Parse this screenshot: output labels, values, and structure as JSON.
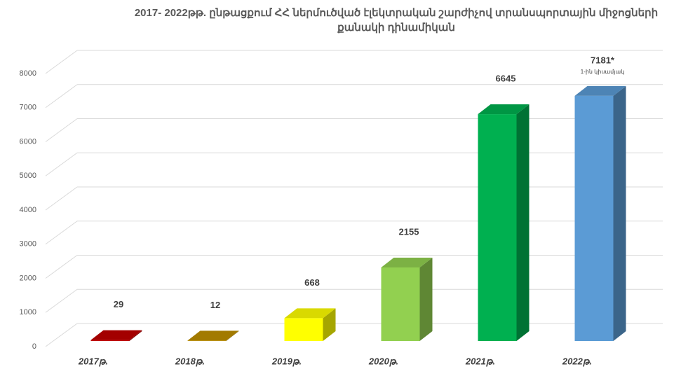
{
  "chart_data": {
    "type": "bar3d",
    "title": "2017- 2022թթ. ընթացքում  ՀՀ ներմուծված էլեկտրական շարժիչով տրանսպորտային միջոցների քանակի  դինամիկան",
    "categories": [
      "2017թ.",
      "2018թ.",
      "2019թ.",
      "2020թ.",
      "2021թ.",
      "2022թ."
    ],
    "values": [
      29,
      12,
      668,
      2155,
      6645,
      7181
    ],
    "value_labels": [
      "29",
      "12",
      "668",
      "2155",
      "6645",
      "7181*"
    ],
    "colors": [
      "#c00000",
      "#bf9000",
      "#ffff00",
      "#92d050",
      "#00b050",
      "#5b9bd5"
    ],
    "annotation": "1-ին կիսամյակ",
    "ylim": [
      0,
      8000
    ],
    "yticks": [
      0,
      1000,
      2000,
      3000,
      4000,
      5000,
      6000,
      7000,
      8000
    ],
    "grid": true
  }
}
